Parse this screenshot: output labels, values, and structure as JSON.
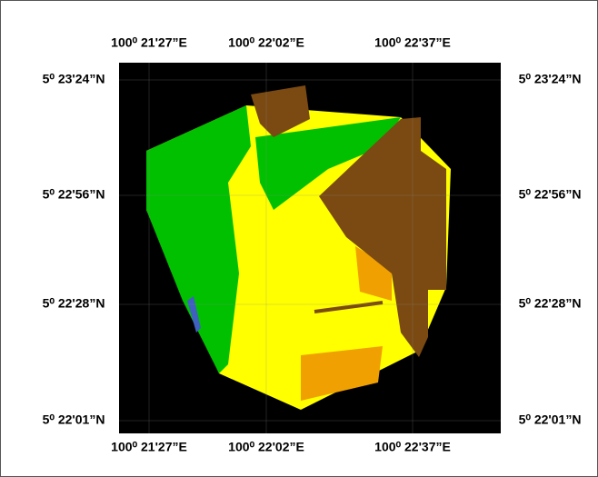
{
  "top_labels": [
    "100⁰ 21ʹ27”E",
    "100⁰ 22ʹ02”E",
    "100⁰ 22ʹ37”E"
  ],
  "bottom_labels": [
    "100⁰ 21ʹ27”E",
    "100⁰ 22ʹ02”E",
    "100⁰ 22ʹ37”E"
  ],
  "left_labels": [
    "5⁰ 23ʹ24”N",
    "5⁰ 22ʹ56”N",
    "5⁰ 22ʹ28”N",
    "5⁰ 22ʹ01”N"
  ],
  "right_labels": [
    "5⁰ 23ʹ24”N",
    "5⁰ 22ʹ56”N",
    "5⁰ 22ʹ28”N",
    "5⁰ 22ʹ01”N"
  ]
}
